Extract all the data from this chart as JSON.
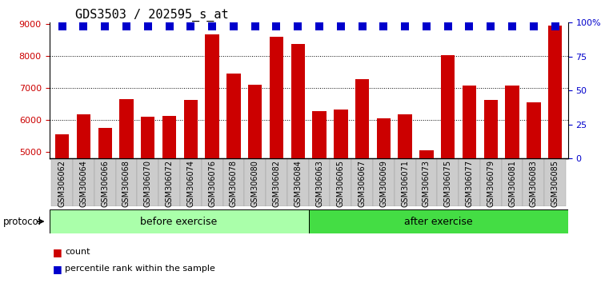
{
  "title": "GDS3503 / 202595_s_at",
  "categories": [
    "GSM306062",
    "GSM306064",
    "GSM306066",
    "GSM306068",
    "GSM306070",
    "GSM306072",
    "GSM306074",
    "GSM306076",
    "GSM306078",
    "GSM306080",
    "GSM306082",
    "GSM306084",
    "GSM306063",
    "GSM306065",
    "GSM306067",
    "GSM306069",
    "GSM306071",
    "GSM306073",
    "GSM306075",
    "GSM306077",
    "GSM306079",
    "GSM306081",
    "GSM306083",
    "GSM306085"
  ],
  "bar_values": [
    5560,
    6180,
    5760,
    6660,
    6100,
    6140,
    6620,
    8680,
    7450,
    7110,
    8620,
    8380,
    6270,
    6320,
    7280,
    6050,
    6170,
    5050,
    8040,
    7080,
    6640,
    7080,
    6560,
    8960
  ],
  "percentile_values": [
    97,
    97,
    97,
    97,
    97,
    97,
    97,
    97,
    97,
    97,
    97,
    97,
    97,
    97,
    97,
    97,
    97,
    97,
    97,
    97,
    97,
    97,
    97,
    97
  ],
  "bar_color": "#cc0000",
  "percentile_color": "#0000cc",
  "ylim_left": [
    4800,
    9050
  ],
  "ylim_right": [
    0,
    100
  ],
  "yticks_left": [
    5000,
    6000,
    7000,
    8000,
    9000
  ],
  "yticks_right": [
    0,
    25,
    50,
    75,
    100
  ],
  "ytick_labels_right": [
    "0",
    "25",
    "50",
    "75",
    "100%"
  ],
  "grid_values": [
    6000,
    7000,
    8000
  ],
  "before_exercise_count": 12,
  "after_exercise_count": 12,
  "before_label": "before exercise",
  "after_label": "after exercise",
  "protocol_label": "protocol",
  "legend_count_label": "count",
  "legend_percentile_label": "percentile rank within the sample",
  "before_color": "#aaffaa",
  "after_color": "#44dd44",
  "bar_width": 0.65,
  "percentile_marker_size": 7,
  "title_fontsize": 11,
  "tick_fontsize": 8,
  "label_fontsize": 7
}
